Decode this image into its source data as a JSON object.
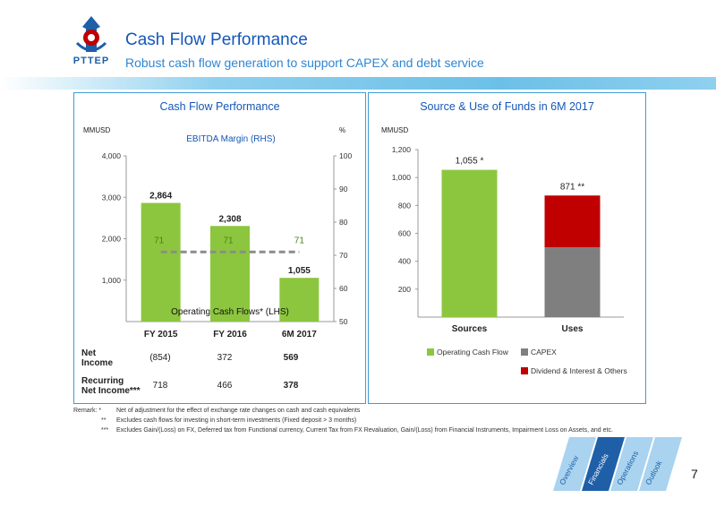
{
  "header": {
    "title": "Cash Flow Performance",
    "subtitle": "Robust cash flow generation to support CAPEX and debt service",
    "logo_text": "PTTEP"
  },
  "left_panel": {
    "title": "Cash Flow Performance",
    "left_unit": "MMUSD",
    "right_unit": "%",
    "ebitda_label": "EBITDA Margin (RHS)",
    "ocf_label": "Operating Cash Flows* (LHS)",
    "table": {
      "rows": [
        {
          "label": [
            "Net",
            "Income"
          ],
          "values": [
            "(854)",
            "372",
            "569"
          ]
        },
        {
          "label": [
            "Recurring",
            "Net Income***"
          ],
          "values": [
            "718",
            "466",
            "378"
          ]
        }
      ]
    }
  },
  "right_panel": {
    "title": "Source & Use of Funds in 6M 2017",
    "unit": "MMUSD",
    "legend": [
      {
        "label": "Operating Cash Flow",
        "color": "#8cc63e"
      },
      {
        "label": "CAPEX",
        "color": "#7f7f7f"
      },
      {
        "label": "Dividend & Interest & Others",
        "color": "#c00000"
      }
    ]
  },
  "chart_data": [
    {
      "type": "bar",
      "title": "Cash Flow Performance",
      "categories": [
        "FY 2015",
        "FY 2016",
        "6M 2017"
      ],
      "series": [
        {
          "name": "Operating Cash Flows* (LHS)",
          "values": [
            2864,
            2308,
            1055
          ],
          "labels": [
            "2,864",
            "2,308",
            "1,055"
          ],
          "color": "#8cc63e"
        },
        {
          "name": "EBITDA Margin (RHS)",
          "type": "line",
          "axis": "right",
          "values": [
            71,
            71,
            71
          ],
          "labels": [
            "71",
            "71",
            "71"
          ],
          "color": "#8c8c8c"
        }
      ],
      "ylabel": "MMUSD",
      "ylim": [
        0,
        4000
      ],
      "yticks": [
        "1,000",
        "2,000",
        "3,000",
        "4,000"
      ],
      "y2label": "%",
      "y2lim": [
        50,
        100
      ],
      "y2ticks": [
        "50",
        "60",
        "70",
        "80",
        "90",
        "100"
      ],
      "grid": false
    },
    {
      "type": "bar",
      "stacked": true,
      "title": "Source & Use of Funds in 6M 2017",
      "categories": [
        "Sources",
        "Uses"
      ],
      "series": [
        {
          "name": "Operating Cash Flow",
          "values": [
            1055,
            0
          ],
          "color": "#8cc63e"
        },
        {
          "name": "CAPEX",
          "values": [
            0,
            500
          ],
          "color": "#7f7f7f"
        },
        {
          "name": "Dividend & Interest & Others",
          "values": [
            0,
            371
          ],
          "color": "#c00000"
        }
      ],
      "totals": [
        "1,055 *",
        "871 **"
      ],
      "ylabel": "MMUSD",
      "ylim": [
        0,
        1200
      ],
      "yticks": [
        "200",
        "400",
        "600",
        "800",
        "1,000",
        "1,200"
      ],
      "legend": "bottom",
      "grid": false
    }
  ],
  "remarks": [
    {
      "marker": "Remark:  *",
      "text": "Net of adjustment for the effect of exchange rate changes on cash and cash equivalents"
    },
    {
      "marker": "**",
      "text": "Excludes cash flows for investing in short-term investments (Fixed deposit > 3 months)"
    },
    {
      "marker": "***",
      "text": "Excludes Gain/(Loss) on FX, Deferred tax from Functional currency, Current Tax from FX Revaluation, Gain/(Loss) from Financial Instruments, Impairment Loss on Assets, and etc."
    }
  ],
  "nav_tabs": [
    {
      "label": "Overview",
      "color": "#a9d3ef"
    },
    {
      "label": "Financials",
      "color": "#1f5fa8"
    },
    {
      "label": "Operations",
      "color": "#a9d3ef"
    },
    {
      "label": "Outlook",
      "color": "#a9d3ef"
    }
  ],
  "page_number": "7"
}
